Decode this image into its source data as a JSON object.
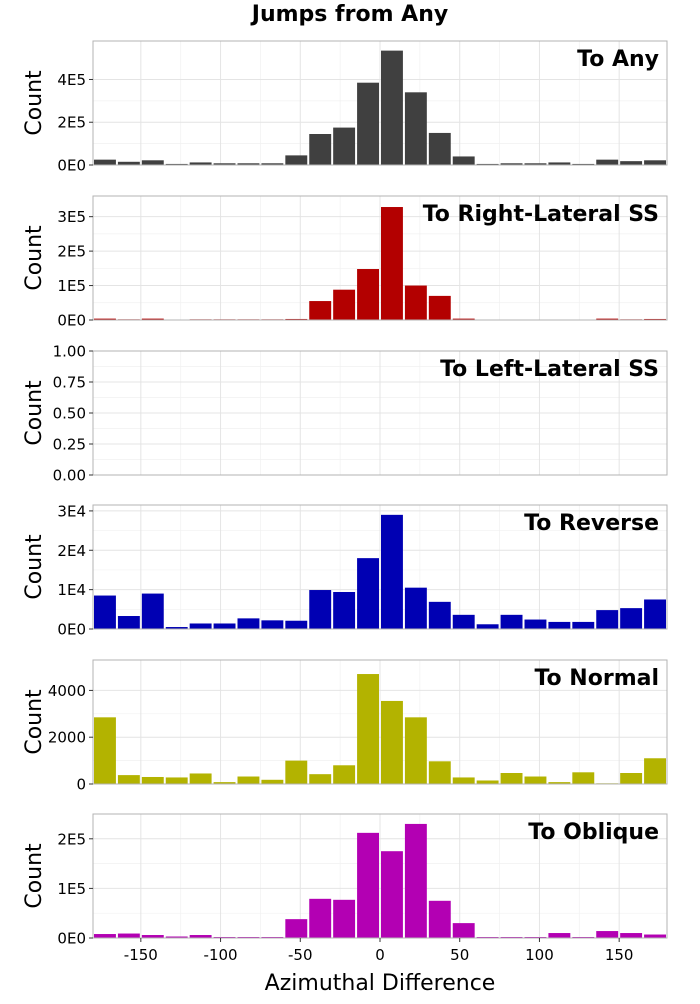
{
  "figure": {
    "title": "Jumps from Any",
    "xlabel": "Azimuthal Difference",
    "ylabel": "Count"
  },
  "chart_data": {
    "type": "bar",
    "title": "Jumps from Any",
    "xlabel": "Azimuthal Difference",
    "ylabel": "Count",
    "bin_width": 15,
    "x": [
      -172.5,
      -157.5,
      -142.5,
      -127.5,
      -112.5,
      -97.5,
      -82.5,
      -67.5,
      -52.5,
      -37.5,
      -22.5,
      -7.5,
      7.5,
      22.5,
      37.5,
      52.5,
      67.5,
      82.5,
      97.5,
      112.5,
      127.5,
      142.5,
      157.5,
      172.5
    ],
    "xlim": [
      -180,
      180
    ],
    "xticks": [
      -150,
      -100,
      -50,
      0,
      50,
      100,
      150
    ],
    "xtick_labels": [
      "-150",
      "-100",
      "-50",
      "0",
      "50",
      "100",
      "150"
    ],
    "grid": true,
    "panels": [
      {
        "name": "To Any",
        "color": "#404040",
        "ylim": [
          0,
          580000
        ],
        "yticks": [
          0,
          200000,
          400000
        ],
        "ytick_labels": [
          "0E0",
          "2E5",
          "4E5"
        ],
        "values": [
          25000,
          15000,
          22000,
          5000,
          12000,
          8000,
          8000,
          8000,
          45000,
          145000,
          175000,
          385000,
          535000,
          340000,
          150000,
          40000,
          5000,
          8000,
          8000,
          12000,
          5000,
          25000,
          18000,
          22000
        ]
      },
      {
        "name": "To Right-Lateral SS",
        "color": "#b30000",
        "ylim": [
          0,
          360000
        ],
        "yticks": [
          0,
          100000,
          200000,
          300000
        ],
        "ytick_labels": [
          "0E0",
          "1E5",
          "2E5",
          "3E5"
        ],
        "values": [
          4000,
          2000,
          4000,
          1000,
          2000,
          2000,
          2000,
          2000,
          3000,
          55000,
          88000,
          148000,
          328000,
          100000,
          70000,
          4000,
          1000,
          1000,
          1000,
          1000,
          1000,
          4000,
          2000,
          3000
        ]
      },
      {
        "name": "To Left-Lateral SS",
        "color": "#808080",
        "ylim": [
          0,
          1
        ],
        "yticks": [
          0,
          0.25,
          0.5,
          0.75,
          1
        ],
        "ytick_labels": [
          "0.00",
          "0.25",
          "0.50",
          "0.75",
          "1.00"
        ],
        "values": []
      },
      {
        "name": "To Reverse",
        "color": "#0000b3",
        "ylim": [
          0,
          31500
        ],
        "yticks": [
          0,
          10000,
          20000,
          30000
        ],
        "ytick_labels": [
          "0E0",
          "1E4",
          "2E4",
          "3E4"
        ],
        "values": [
          8500,
          3300,
          9000,
          500,
          1400,
          1400,
          2700,
          2200,
          2100,
          9900,
          9400,
          18000,
          29000,
          10500,
          6900,
          3600,
          1200,
          3600,
          2400,
          1800,
          1800,
          4800,
          5300,
          7500
        ]
      },
      {
        "name": "To Normal",
        "color": "#b3b300",
        "ylim": [
          0,
          5300
        ],
        "yticks": [
          0,
          2000,
          4000
        ],
        "ytick_labels": [
          "0",
          "2000",
          "4000"
        ],
        "values": [
          2850,
          380,
          300,
          280,
          450,
          80,
          320,
          180,
          1000,
          420,
          800,
          4700,
          3550,
          2850,
          970,
          280,
          150,
          470,
          320,
          80,
          500,
          30,
          470,
          1100
        ]
      },
      {
        "name": "To Oblique",
        "color": "#b300b3",
        "ylim": [
          0,
          250000
        ],
        "yticks": [
          0,
          100000,
          200000
        ],
        "ytick_labels": [
          "0E0",
          "1E5",
          "2E5"
        ],
        "values": [
          8000,
          9000,
          6000,
          3000,
          6000,
          2000,
          2000,
          2000,
          38000,
          79000,
          77000,
          212000,
          175000,
          230000,
          75000,
          30000,
          2000,
          2000,
          2000,
          10000,
          2000,
          14000,
          10000,
          7000
        ]
      }
    ]
  }
}
